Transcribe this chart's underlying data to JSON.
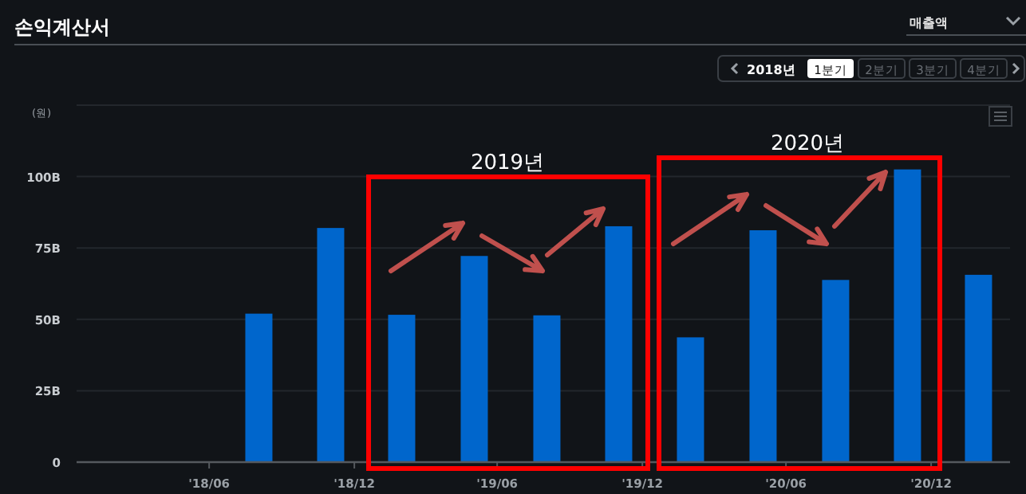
{
  "chart_data": {
    "type": "bar",
    "title": "손익계산서",
    "ylabel": "(원)",
    "annotations": [
      "매출액",
      "2018년",
      "1분기",
      "2분기",
      "3분기",
      "4분기",
      "2019년",
      "2020년"
    ],
    "x": [
      "2018-09",
      "2018-12",
      "2019-03",
      "2019-06",
      "2019-09",
      "2019-12",
      "2020-03",
      "2020-06",
      "2020-09",
      "2020-12",
      "2021-03"
    ],
    "values": [
      52,
      82,
      51.6,
      72.2,
      51.4,
      82.6,
      43.7,
      81.2,
      63.8,
      102.5,
      65.6
    ],
    "color": "#0066cc",
    "xlim": [
      "2018-01-13",
      "2021-04-10"
    ],
    "xticks": [
      {
        "value": "2018-06-30",
        "label": "'18/06"
      },
      {
        "value": "2018-12-31",
        "label": "'18/12"
      },
      {
        "value": "2019-06-30",
        "label": "'19/06"
      },
      {
        "value": "2019-12-31",
        "label": "'19/12"
      },
      {
        "value": "2020-06-30",
        "label": "'20/06"
      },
      {
        "value": "2020-12-31",
        "label": "'20/12"
      }
    ],
    "ylim": [
      0,
      125
    ],
    "yticks": [
      0,
      {
        "value": 25,
        "label": "25B"
      },
      {
        "value": 50,
        "label": "50B"
      },
      {
        "value": 75,
        "label": "75B"
      },
      {
        "value": 100,
        "label": "100B"
      },
      {
        "value": 125,
        "label": null
      }
    ],
    "grid": "y"
  }
}
